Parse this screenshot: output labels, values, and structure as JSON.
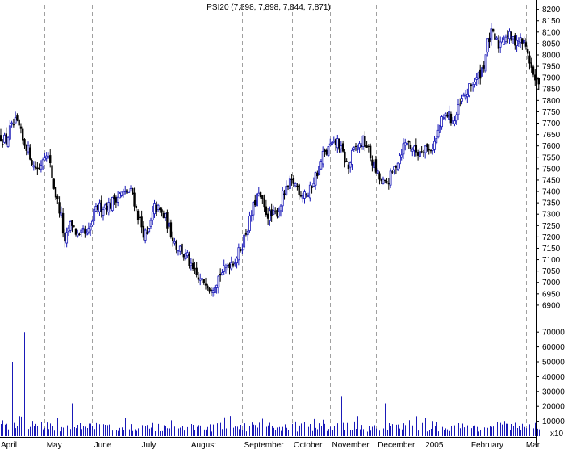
{
  "title": "PSI20 (7,898, 7,898, 7,844, 7,871)",
  "colors": {
    "background": "#ffffff",
    "up_candle": "#1a1ab8",
    "down_candle": "#000000",
    "volume": "#1a1ab8",
    "hline": "#1a1aa0",
    "grid": "#a0a0a0",
    "frame": "#000000"
  },
  "volume_scale_marker": "x10",
  "chart_data": [
    {
      "type": "candlestick",
      "title": "PSI20 (7,898, 7,898, 7,844, 7,871)",
      "ylim": [
        6850,
        8220
      ],
      "y_ticks": [
        6900,
        6950,
        7000,
        7050,
        7100,
        7150,
        7200,
        7250,
        7300,
        7350,
        7400,
        7450,
        7500,
        7550,
        7600,
        7650,
        7700,
        7750,
        7800,
        7850,
        7900,
        7950,
        8000,
        8050,
        8100,
        8150,
        8200
      ],
      "x_labels": [
        "April",
        "May",
        "June",
        "July",
        "August",
        "September",
        "October",
        "November",
        "December",
        "2005",
        "February",
        "Mar"
      ],
      "x_label_slots": [
        0,
        25,
        51,
        77,
        104,
        133,
        160,
        181,
        206,
        232,
        257,
        287
      ],
      "x_gridline_slots": [
        24,
        50,
        76,
        103,
        132,
        159,
        180,
        205,
        231,
        256,
        287
      ],
      "horizontal_lines": [
        7405,
        7975
      ],
      "last_candle": {
        "open": 7898,
        "high": 7898,
        "low": 7844,
        "close": 7871
      },
      "close_path": [
        [
          0,
          7640
        ],
        [
          3,
          7620
        ],
        [
          5,
          7670
        ],
        [
          8,
          7700
        ],
        [
          10,
          7680
        ],
        [
          12,
          7620
        ],
        [
          14,
          7600
        ],
        [
          16,
          7560
        ],
        [
          18,
          7510
        ],
        [
          21,
          7500
        ],
        [
          23,
          7550
        ],
        [
          25,
          7580
        ],
        [
          27,
          7510
        ],
        [
          29,
          7420
        ],
        [
          31,
          7350
        ],
        [
          33,
          7290
        ],
        [
          35,
          7160
        ],
        [
          37,
          7240
        ],
        [
          39,
          7260
        ],
        [
          41,
          7220
        ],
        [
          43,
          7190
        ],
        [
          45,
          7220
        ],
        [
          47,
          7200
        ],
        [
          49,
          7240
        ],
        [
          51,
          7300
        ],
        [
          53,
          7330
        ],
        [
          55,
          7330
        ],
        [
          57,
          7340
        ],
        [
          60,
          7340
        ],
        [
          62,
          7370
        ],
        [
          64,
          7380
        ],
        [
          66,
          7390
        ],
        [
          68,
          7390
        ],
        [
          70,
          7400
        ],
        [
          72,
          7390
        ],
        [
          74,
          7320
        ],
        [
          76,
          7270
        ],
        [
          78,
          7220
        ],
        [
          80,
          7200
        ],
        [
          82,
          7260
        ],
        [
          84,
          7330
        ],
        [
          86,
          7320
        ],
        [
          88,
          7300
        ],
        [
          90,
          7280
        ],
        [
          92,
          7240
        ],
        [
          94,
          7200
        ],
        [
          96,
          7160
        ],
        [
          98,
          7150
        ],
        [
          100,
          7120
        ],
        [
          102,
          7110
        ],
        [
          104,
          7060
        ],
        [
          106,
          7040
        ],
        [
          108,
          7010
        ],
        [
          110,
          7000
        ],
        [
          112,
          7010
        ],
        [
          114,
          6980
        ],
        [
          116,
          6990
        ],
        [
          118,
          7010
        ],
        [
          120,
          7040
        ],
        [
          122,
          7050
        ],
        [
          124,
          7080
        ],
        [
          126,
          7090
        ],
        [
          128,
          7100
        ],
        [
          130,
          7130
        ],
        [
          132,
          7170
        ],
        [
          134,
          7220
        ],
        [
          136,
          7270
        ],
        [
          138,
          7330
        ],
        [
          140,
          7380
        ],
        [
          142,
          7370
        ],
        [
          144,
          7320
        ],
        [
          146,
          7300
        ],
        [
          148,
          7290
        ],
        [
          150,
          7300
        ],
        [
          152,
          7320
        ],
        [
          154,
          7380
        ],
        [
          156,
          7400
        ],
        [
          158,
          7430
        ],
        [
          160,
          7440
        ],
        [
          162,
          7420
        ],
        [
          164,
          7390
        ],
        [
          166,
          7400
        ],
        [
          168,
          7380
        ],
        [
          170,
          7430
        ],
        [
          172,
          7470
        ],
        [
          174,
          7500
        ],
        [
          176,
          7560
        ],
        [
          178,
          7570
        ],
        [
          180,
          7600
        ],
        [
          182,
          7600
        ],
        [
          184,
          7620
        ],
        [
          186,
          7580
        ],
        [
          188,
          7540
        ],
        [
          190,
          7500
        ],
        [
          192,
          7560
        ],
        [
          194,
          7590
        ],
        [
          196,
          7600
        ],
        [
          198,
          7620
        ],
        [
          200,
          7600
        ],
        [
          202,
          7550
        ],
        [
          204,
          7510
        ],
        [
          206,
          7470
        ],
        [
          208,
          7440
        ],
        [
          210,
          7430
        ],
        [
          212,
          7450
        ],
        [
          214,
          7480
        ],
        [
          216,
          7520
        ],
        [
          218,
          7560
        ],
        [
          220,
          7600
        ],
        [
          222,
          7620
        ],
        [
          224,
          7600
        ],
        [
          226,
          7580
        ],
        [
          228,
          7570
        ],
        [
          230,
          7590
        ],
        [
          232,
          7600
        ],
        [
          234,
          7580
        ],
        [
          236,
          7600
        ],
        [
          238,
          7630
        ],
        [
          240,
          7690
        ],
        [
          242,
          7720
        ],
        [
          244,
          7740
        ],
        [
          246,
          7720
        ],
        [
          248,
          7710
        ],
        [
          250,
          7760
        ],
        [
          252,
          7800
        ],
        [
          254,
          7820
        ],
        [
          256,
          7850
        ],
        [
          258,
          7880
        ],
        [
          260,
          7890
        ],
        [
          262,
          7920
        ],
        [
          264,
          7960
        ],
        [
          266,
          8050
        ],
        [
          268,
          8090
        ],
        [
          270,
          8070
        ],
        [
          272,
          8040
        ],
        [
          274,
          8070
        ],
        [
          276,
          8090
        ],
        [
          278,
          8080
        ],
        [
          280,
          8060
        ],
        [
          282,
          8070
        ],
        [
          284,
          8060
        ],
        [
          286,
          8050
        ],
        [
          288,
          8010
        ],
        [
          290,
          7940
        ],
        [
          292,
          7880
        ],
        [
          294,
          7871
        ]
      ]
    },
    {
      "type": "bar",
      "name": "volume",
      "ylim": [
        0,
        75000
      ],
      "y_ticks": [
        10000,
        20000,
        30000,
        40000,
        50000,
        60000,
        70000
      ],
      "spikes": [
        [
          6,
          50000
        ],
        [
          13,
          70000
        ],
        [
          14,
          22000
        ],
        [
          39,
          22000
        ],
        [
          186,
          27000
        ],
        [
          210,
          22000
        ],
        [
          232,
          12000
        ]
      ],
      "typical_range": [
        3000,
        14000
      ]
    }
  ]
}
